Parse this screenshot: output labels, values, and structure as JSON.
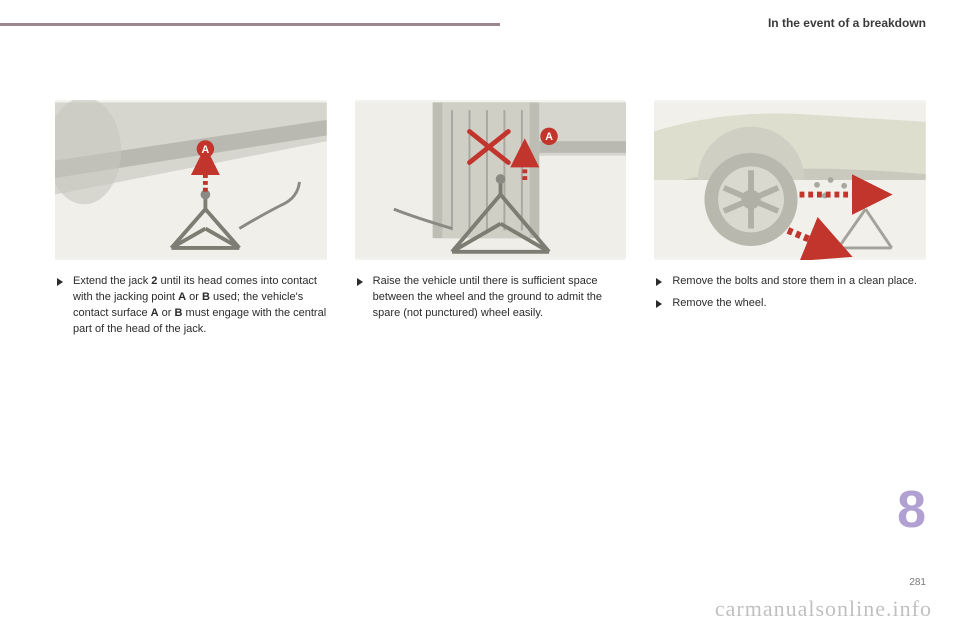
{
  "header": {
    "title": "In the event of a breakdown"
  },
  "section_number": "8",
  "page_number": "281",
  "watermark": "carmanualsonline.info",
  "columns": [
    {
      "bullets": [
        {
          "html": "Extend the jack <b>2</b> until its head comes into contact with the jacking point <b>A</b> or <b>B</b> used; the vehicle's contact surface <b>A</b> or <b>B</b> must engage with the central part of the head of the jack."
        }
      ],
      "illus": {
        "marker": "A",
        "arrow_color": "#c2352d",
        "body_tone": "#cfcfc7",
        "jack_tone": "#8a8a82"
      }
    },
    {
      "bullets": [
        {
          "html": "Raise the vehicle until there is sufficient space between the wheel and the ground to admit the spare (not punctured) wheel easily."
        }
      ],
      "illus": {
        "marker": "A",
        "cross": true,
        "arrow_color": "#c2352d",
        "body_tone": "#d2d2cb",
        "jack_tone": "#8a8a82"
      }
    },
    {
      "bullets": [
        {
          "html": "Remove the bolts and store them in a clean place."
        },
        {
          "html": "Remove the wheel."
        }
      ],
      "illus": {
        "wheel": true,
        "arrow_color": "#c2352d",
        "body_tone": "#e4e4de",
        "jack_tone": "#9b9b93"
      }
    }
  ]
}
